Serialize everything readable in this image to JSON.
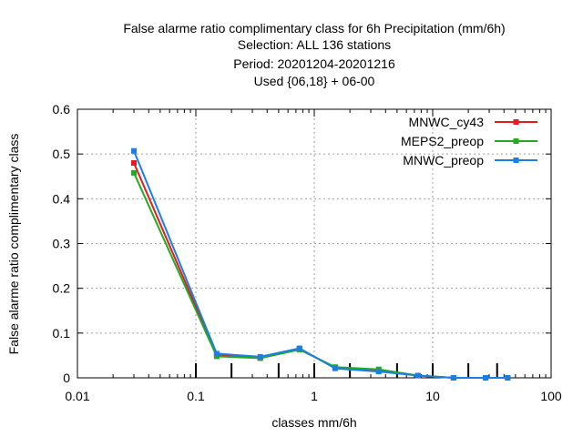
{
  "chart_data": {
    "type": "line",
    "title_lines": [
      "False alarme ratio complimentary class  for 6h Precipitation (mm/6h)",
      "Selection: ALL    136 stations",
      "Period: 20201204-20201216",
      "Used {06,18} + 06-00"
    ],
    "xlabel": "classes mm/6h",
    "ylabel": "False alarme ratio complimentary class",
    "x_scale": "log",
    "xlim": [
      0.01,
      100
    ],
    "ylim": [
      0,
      0.6
    ],
    "x_ticks": [
      0.01,
      0.1,
      1,
      10,
      100
    ],
    "x_tick_labels": [
      "0.01",
      "0.1",
      "1",
      "10",
      "100"
    ],
    "y_ticks": [
      0,
      0.1,
      0.2,
      0.3,
      0.4,
      0.5,
      0.6
    ],
    "y_tick_labels": [
      "0",
      "0.1",
      "0.2",
      "0.3",
      "0.4",
      "0.5",
      "0.6"
    ],
    "grid": true,
    "legend_position": "top-right",
    "class_limit_marks": [
      0.1,
      0.2,
      0.5,
      1,
      2,
      5,
      10,
      20,
      35
    ],
    "x": [
      0.03,
      0.15,
      0.35,
      0.75,
      1.5,
      3.5,
      7.5,
      15,
      28,
      43
    ],
    "series": [
      {
        "name": "MNWC_cy43",
        "color": "#e41a1c",
        "values": [
          0.48,
          0.051,
          0.044,
          0.064,
          0.023,
          0.016,
          0.005,
          0.0,
          0.0,
          0.0
        ]
      },
      {
        "name": "MEPS2_preop",
        "color": "#22aa22",
        "values": [
          0.458,
          0.048,
          0.044,
          0.063,
          0.024,
          0.019,
          0.005,
          0.0,
          0.0,
          0.0
        ]
      },
      {
        "name": "MNWC_preop",
        "color": "#1a7fe4",
        "values": [
          0.507,
          0.054,
          0.047,
          0.066,
          0.021,
          0.014,
          0.005,
          0.0,
          0.0,
          0.0
        ]
      }
    ]
  }
}
